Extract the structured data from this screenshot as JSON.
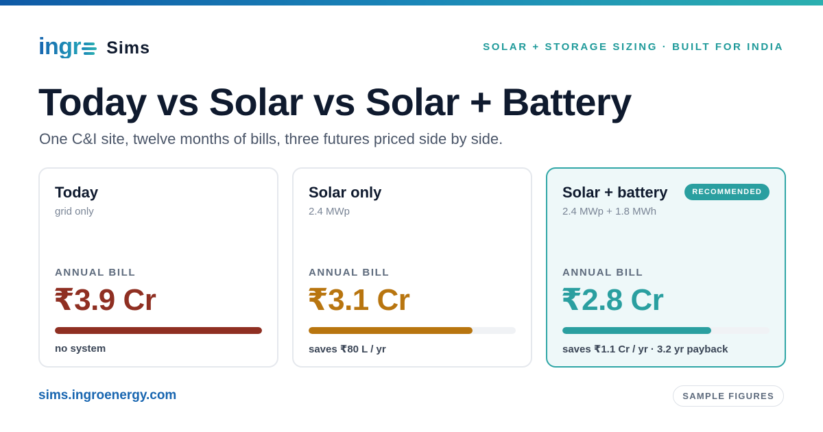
{
  "brand": {
    "logo_text": "ingr",
    "logo_icon": "stacked-lines-o-icon",
    "product": "Sims"
  },
  "tagline": "SOLAR + STORAGE SIZING · BUILT FOR INDIA",
  "title": "Today vs Solar vs Solar + Battery",
  "subtitle": "One C&I site, twelve months of bills, three futures priced side by side.",
  "colors": {
    "today": "#8f2f22",
    "solar": "#b8750f",
    "battery": "#2a9fa0",
    "accent": "#2a9fa0",
    "brand_blue": "#1765b0"
  },
  "cards": [
    {
      "name": "Today",
      "spec": "grid only",
      "bill_label": "ANNUAL BILL",
      "bill_value": "₹3.9 Cr",
      "bar_fraction": 1.0,
      "note": "no system",
      "color": "#8f2f22",
      "recommended": false
    },
    {
      "name": "Solar only",
      "spec": "2.4 MWp",
      "bill_label": "ANNUAL BILL",
      "bill_value": "₹3.1 Cr",
      "bar_fraction": 0.79,
      "note": "saves ₹80 L / yr",
      "color": "#b8750f",
      "recommended": false
    },
    {
      "name": "Solar + battery",
      "spec": "2.4 MWp + 1.8 MWh",
      "bill_label": "ANNUAL BILL",
      "bill_value": "₹2.8 Cr",
      "bar_fraction": 0.72,
      "note": "saves ₹1.1 Cr / yr · 3.2 yr payback",
      "color": "#2a9fa0",
      "recommended": true,
      "badge": "RECOMMENDED"
    }
  ],
  "footer": {
    "url": "sims.ingroenergy.com",
    "sample_label": "SAMPLE FIGURES"
  }
}
